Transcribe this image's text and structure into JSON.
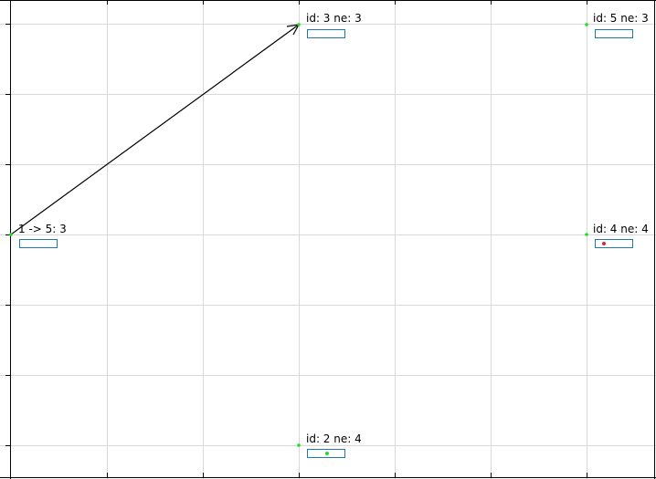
{
  "colors": {
    "background": "#ffffff",
    "grid": "#d9d9d9",
    "axis": "#000000",
    "node_point": "#22dd22",
    "state_box": "#1f77b4",
    "red_marker": "#ee2222",
    "green_marker": "#22dd22",
    "edge": "#000000"
  },
  "nodes": [
    {
      "id": "node-1",
      "label": "1 -> 5: 3"
    },
    {
      "id": "node-2",
      "label": "id: 2 ne: 4",
      "marker": "green"
    },
    {
      "id": "node-3",
      "label": "id: 3 ne: 3"
    },
    {
      "id": "node-4",
      "label": "id: 4 ne: 4",
      "marker": "red"
    },
    {
      "id": "node-5",
      "label": "id: 5 ne: 3"
    }
  ],
  "edges": [
    {
      "from": "node-1",
      "to": "node-3",
      "style": "arrow"
    }
  ]
}
